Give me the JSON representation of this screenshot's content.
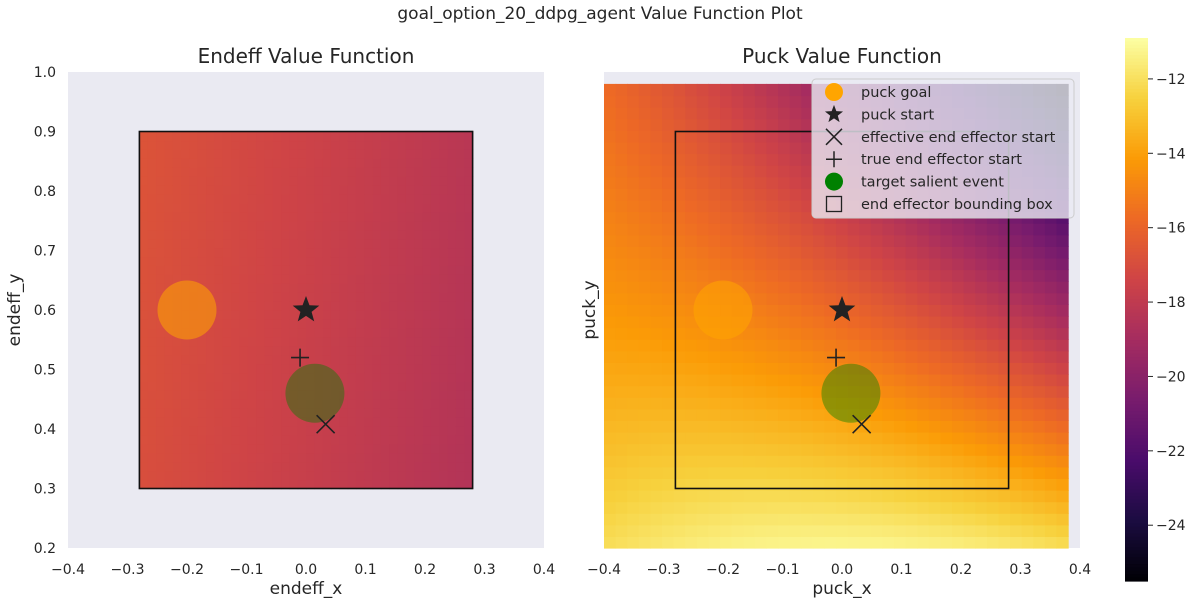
{
  "suptitle": "goal_option_20_ddpg_agent Value Function Plot",
  "chart_data": [
    {
      "type": "heatmap",
      "title": "Endeff Value Function",
      "xlabel": "endeff_x",
      "ylabel": "endeff_y",
      "xlim": [
        -0.4,
        0.4
      ],
      "ylim": [
        0.2,
        1.0
      ],
      "xticks": [
        "−0.4",
        "−0.3",
        "−0.2",
        "−0.1",
        "0.0",
        "0.1",
        "0.2",
        "0.3",
        "0.4"
      ],
      "yticks": [
        "0.2",
        "0.3",
        "0.4",
        "0.5",
        "0.6",
        "0.7",
        "0.8",
        "0.9",
        "1.0"
      ],
      "heatmap_extent": {
        "x": [
          -0.28,
          0.28
        ],
        "y": [
          0.3,
          0.9
        ]
      },
      "value_model": {
        "base": -17.6,
        "x_coef": -2.8,
        "y_coef": 0.4,
        "xy_coef": 0,
        "x2_coef": 0,
        "y2_coef": 0
      },
      "bounding_box": {
        "x": [
          -0.28,
          0.28
        ],
        "y": [
          0.3,
          0.9
        ]
      },
      "markers": {
        "puck_goal": [
          -0.2,
          0.6
        ],
        "puck_start": [
          0.0,
          0.6
        ],
        "effective_end_effector_start": [
          0.033,
          0.408
        ],
        "true_end_effector_start": [
          -0.01,
          0.52
        ],
        "target_salient_event": [
          0.015,
          0.46
        ]
      },
      "show_legend": false
    },
    {
      "type": "heatmap",
      "title": "Puck Value Function",
      "xlabel": "puck_x",
      "ylabel": "puck_y",
      "xlim": [
        -0.4,
        0.4
      ],
      "ylim": [
        0.2,
        1.0
      ],
      "xticks": [
        "−0.4",
        "−0.3",
        "−0.2",
        "−0.1",
        "0.0",
        "0.1",
        "0.2",
        "0.3",
        "0.4"
      ],
      "heatmap_extent": {
        "x": [
          -0.4,
          0.38
        ],
        "y": [
          0.2,
          0.98
        ]
      },
      "value_model": {
        "base": -15.9,
        "x_coef": -6.5,
        "y_coef": -11.0,
        "xy_coef": -16.0,
        "x2_coef": -6.0,
        "y2_coef": 2.0
      },
      "bounding_box": {
        "x": [
          -0.28,
          0.28
        ],
        "y": [
          0.3,
          0.9
        ]
      },
      "markers": {
        "puck_goal": [
          -0.2,
          0.6
        ],
        "puck_start": [
          0.0,
          0.6
        ],
        "effective_end_effector_start": [
          0.033,
          0.408
        ],
        "true_end_effector_start": [
          -0.01,
          0.52
        ],
        "target_salient_event": [
          0.015,
          0.46
        ]
      },
      "show_legend": true,
      "legend_position": "top-right",
      "legend": [
        "puck goal",
        "puck start",
        "effective end effector start",
        "true end effector start",
        "target salient event",
        "end effector bounding box"
      ]
    }
  ],
  "colorbar": {
    "colormap": "inferno",
    "vmin": -25.5,
    "vmax": -10.9,
    "ticks": [
      {
        "value": -12,
        "label": "−12"
      },
      {
        "value": -14,
        "label": "−14"
      },
      {
        "value": -16,
        "label": "−16"
      },
      {
        "value": -18,
        "label": "−18"
      },
      {
        "value": -20,
        "label": "−20"
      },
      {
        "value": -22,
        "label": "−22"
      },
      {
        "value": -24,
        "label": "−24"
      }
    ]
  },
  "colors": {
    "axes_bg": "#eaeaf2",
    "puck_goal": "#ffa500",
    "target_salient_event": "#008000",
    "marker_dark": "#222222",
    "text": "#262626"
  }
}
